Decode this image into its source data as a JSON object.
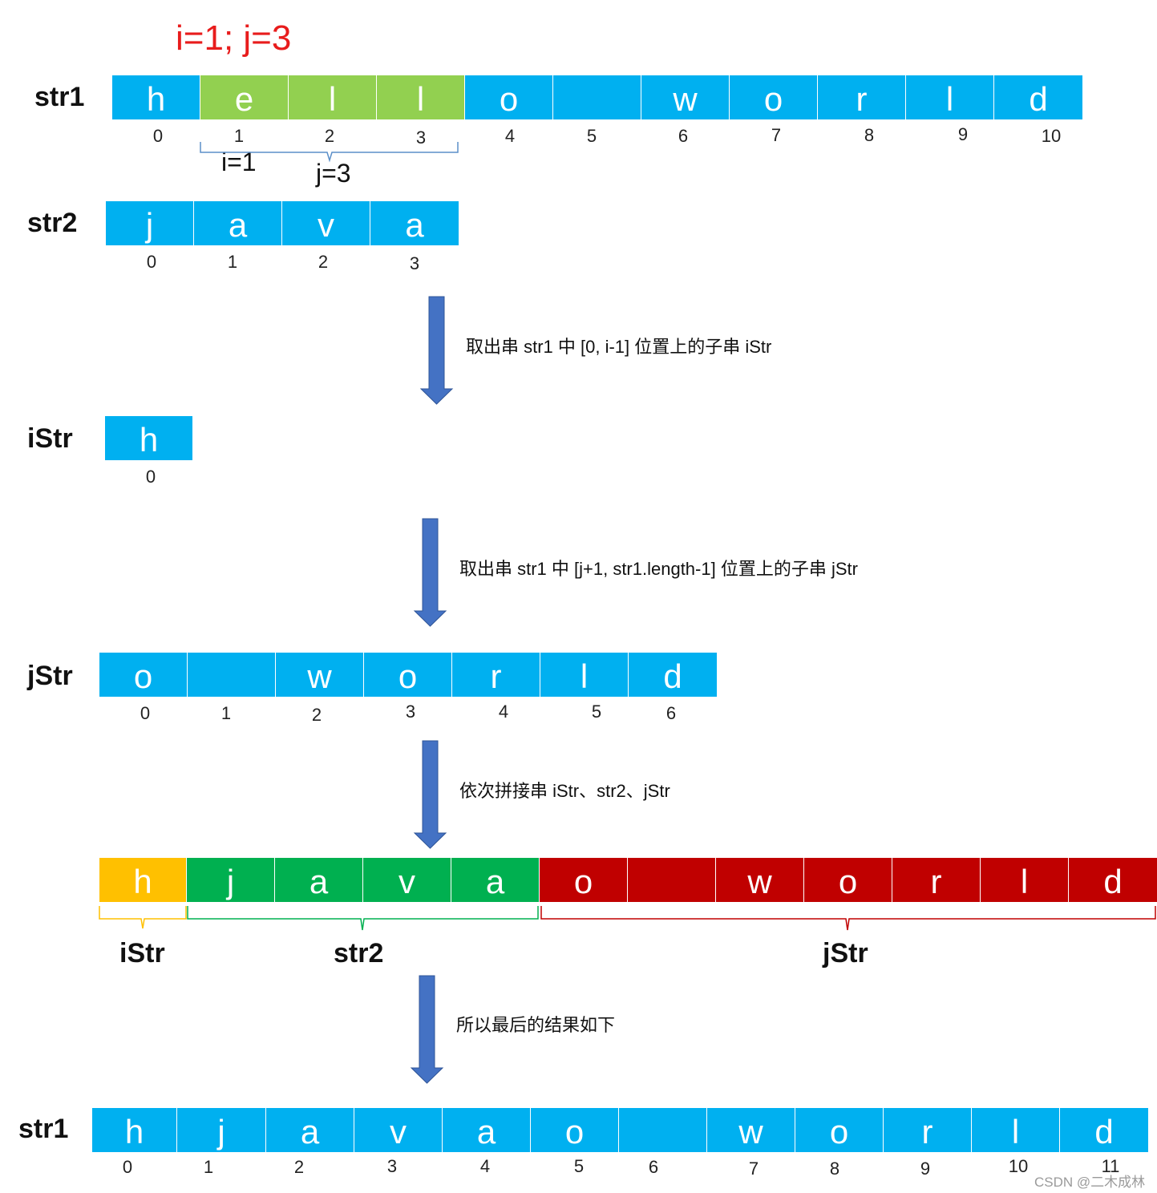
{
  "title": "i=1; j=3",
  "colors": {
    "blue": "#00b0f0",
    "green_light": "#92d050",
    "orange": "#ffc000",
    "green": "#00b050",
    "red": "#c00000",
    "arrow": "#4472c4"
  },
  "rows": {
    "str1": {
      "label": "str1",
      "cells": [
        "h",
        "e",
        "l",
        "l",
        "o",
        "",
        "w",
        "o",
        "r",
        "l",
        "d"
      ],
      "colors": [
        "blue",
        "green_light",
        "green_light",
        "green_light",
        "blue",
        "blue",
        "blue",
        "blue",
        "blue",
        "blue",
        "blue"
      ],
      "indices": [
        "0",
        "1",
        "2",
        "3",
        "4",
        "5",
        "6",
        "7",
        "8",
        "9",
        "10"
      ]
    },
    "str2": {
      "label": "str2",
      "cells": [
        "j",
        "a",
        "v",
        "a"
      ],
      "indices": [
        "0",
        "1",
        "2",
        "3"
      ]
    },
    "istr": {
      "label": "iStr",
      "cells": [
        "h"
      ],
      "indices": [
        "0"
      ]
    },
    "jstr": {
      "label": "jStr",
      "cells": [
        "o",
        "",
        "w",
        "o",
        "r",
        "l",
        "d"
      ],
      "indices": [
        "0",
        "1",
        "2",
        "3",
        "4",
        "5",
        "6"
      ]
    },
    "concat": {
      "cells": [
        "h",
        "j",
        "a",
        "v",
        "a",
        "o",
        "",
        "w",
        "o",
        "r",
        "l",
        "d"
      ],
      "colors": [
        "orange",
        "green",
        "green",
        "green",
        "green",
        "red",
        "red",
        "red",
        "red",
        "red",
        "red",
        "red"
      ]
    },
    "result": {
      "label": "str1",
      "cells": [
        "h",
        "j",
        "a",
        "v",
        "a",
        "o",
        "",
        "w",
        "o",
        "r",
        "l",
        "d"
      ],
      "indices": [
        "0",
        "1",
        "2",
        "3",
        "4",
        "5",
        "6",
        "7",
        "8",
        "9",
        "10",
        "11"
      ]
    }
  },
  "sub_labels": {
    "i": "i=1",
    "j": "j=3"
  },
  "steps": [
    "取出串 str1 中 [0, i-1] 位置上的子串 iStr",
    "取出串 str1 中 [j+1, str1.length-1] 位置上的子串 jStr",
    "依次拼接串 iStr、str2、jStr",
    "所以最后的结果如下"
  ],
  "brace_labels": [
    "iStr",
    "str2",
    "jStr"
  ],
  "watermark": "CSDN @二木成林"
}
